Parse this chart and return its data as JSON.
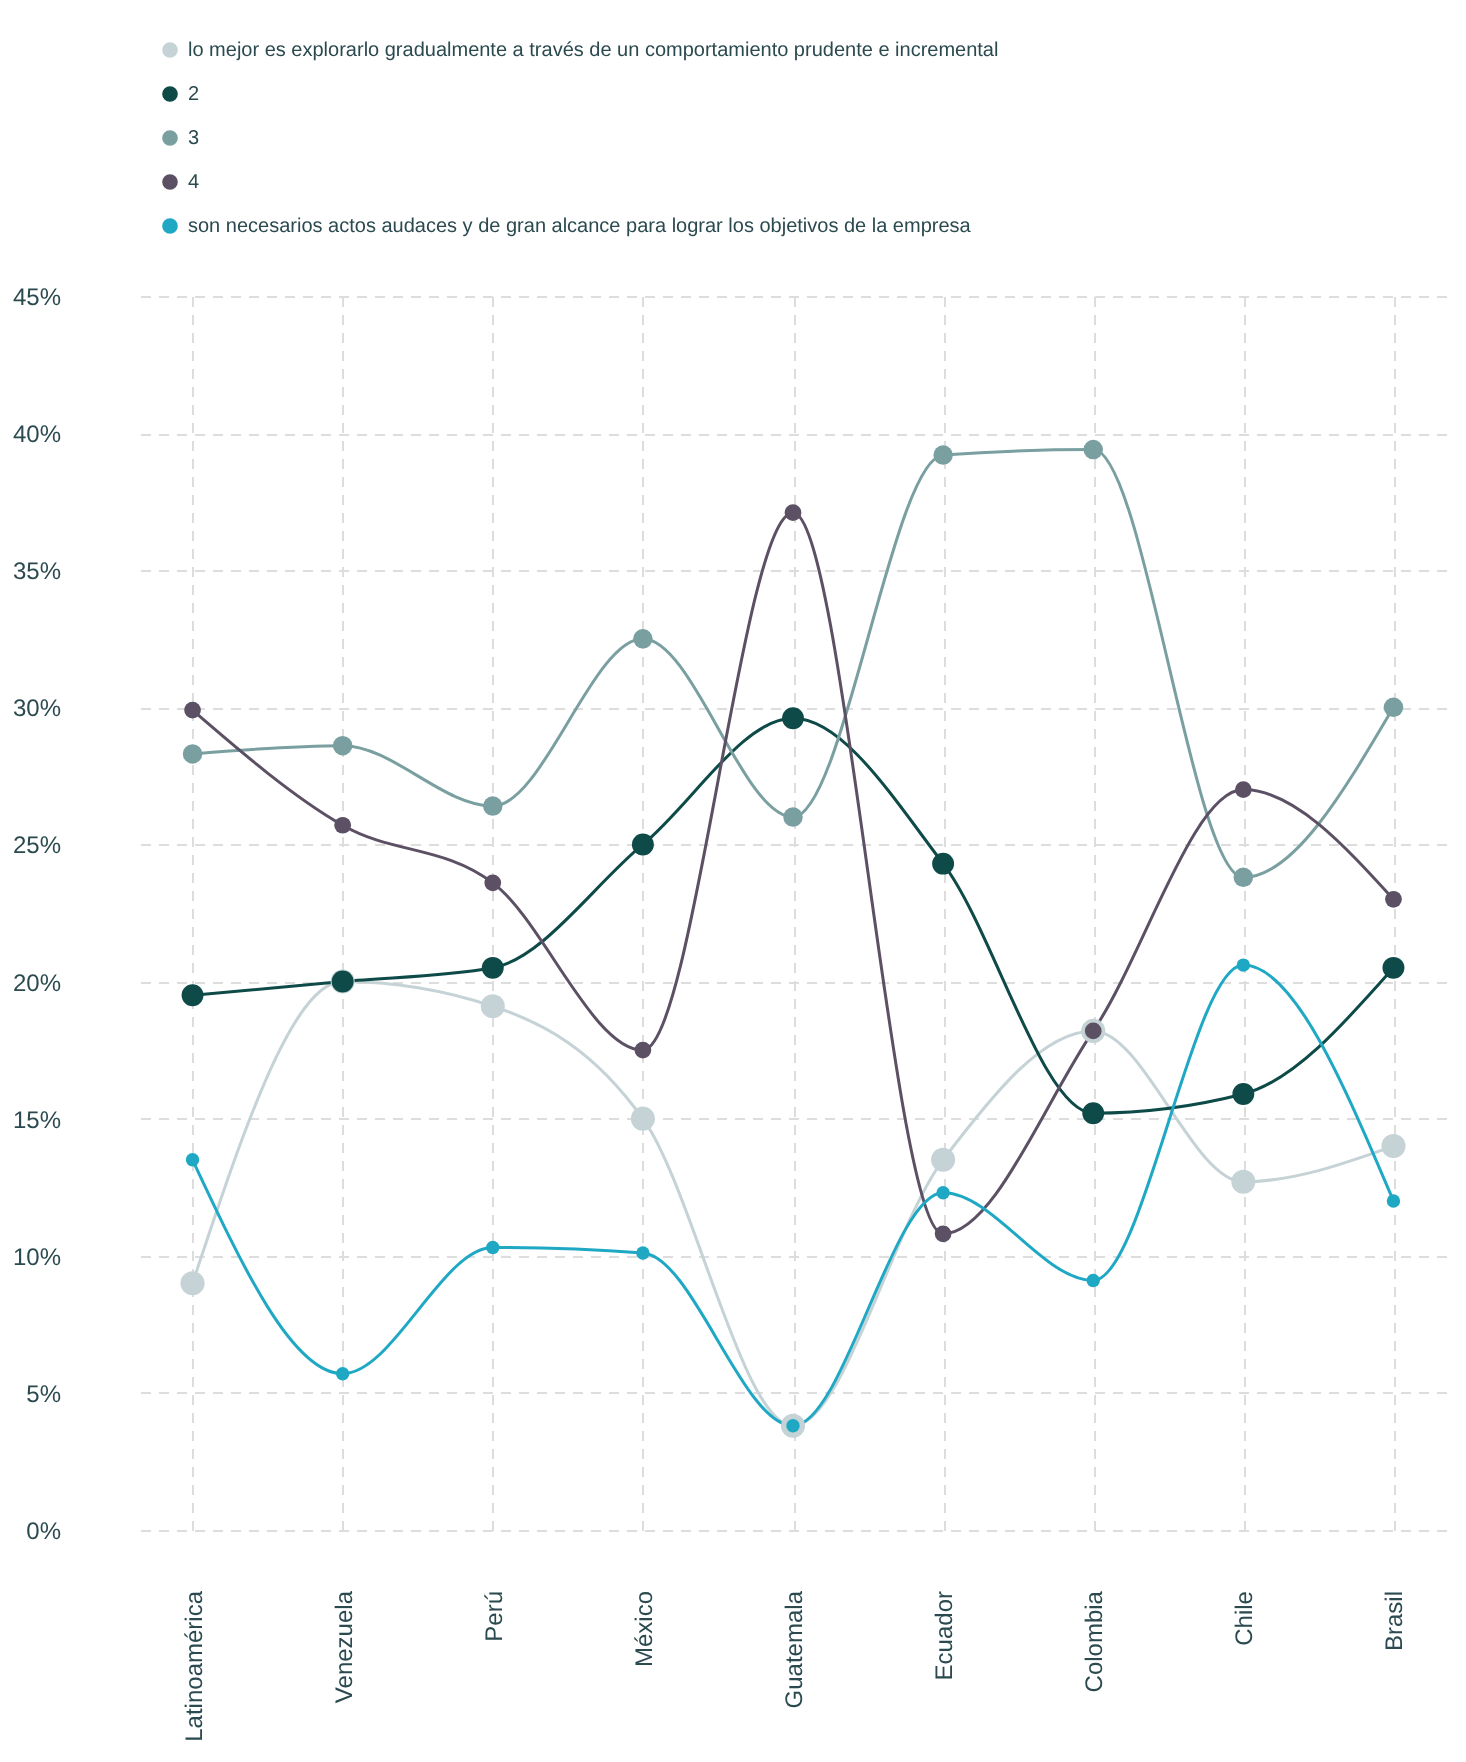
{
  "chart_data": {
    "type": "line",
    "categories": [
      "Latinoamérica",
      "Venezuela",
      "Perú",
      "México",
      "Guatemala",
      "Ecuador",
      "Colombia",
      "Chile",
      "Brasil"
    ],
    "series": [
      {
        "name": "lo mejor es explorarlo gradualmente a través de un comportamiento prudente e incremental",
        "color": "#c5d3d6",
        "values": [
          9.0,
          20.0,
          19.1,
          15.0,
          3.8,
          13.5,
          18.2,
          12.7,
          14.0
        ]
      },
      {
        "name": "2",
        "color": "#0d4a48",
        "values": [
          19.5,
          20.0,
          20.5,
          25.0,
          29.6,
          24.3,
          15.2,
          15.9,
          20.5
        ]
      },
      {
        "name": "3",
        "color": "#7a9fa0",
        "values": [
          28.3,
          28.6,
          26.4,
          32.5,
          26.0,
          39.2,
          39.4,
          23.8,
          30.0
        ]
      },
      {
        "name": "4",
        "color": "#5b5064",
        "values": [
          29.9,
          25.7,
          23.6,
          17.5,
          37.1,
          10.8,
          18.2,
          27.0,
          23.0
        ]
      },
      {
        "name": "son necesarios actos audaces y de gran alcance para lograr los objetivos de la empresa",
        "color": "#1fa8c4",
        "values": [
          13.5,
          5.7,
          10.3,
          10.1,
          3.8,
          12.3,
          9.1,
          20.6,
          12.0
        ]
      }
    ],
    "ylim": [
      0,
      45
    ],
    "yticks": [
      {
        "value": 0,
        "label": "0%"
      },
      {
        "value": 5,
        "label": "5%"
      },
      {
        "value": 10,
        "label": "10%"
      },
      {
        "value": 15,
        "label": "15%"
      },
      {
        "value": 20,
        "label": "20%"
      },
      {
        "value": 25,
        "label": "25%"
      },
      {
        "value": 30,
        "label": "30%"
      },
      {
        "value": 35,
        "label": "35%"
      },
      {
        "value": 40,
        "label": "40%"
      },
      {
        "value": 45,
        "label": "45%"
      }
    ],
    "grid": true,
    "legend": "top",
    "marker": "circle",
    "line_style": "solid"
  }
}
